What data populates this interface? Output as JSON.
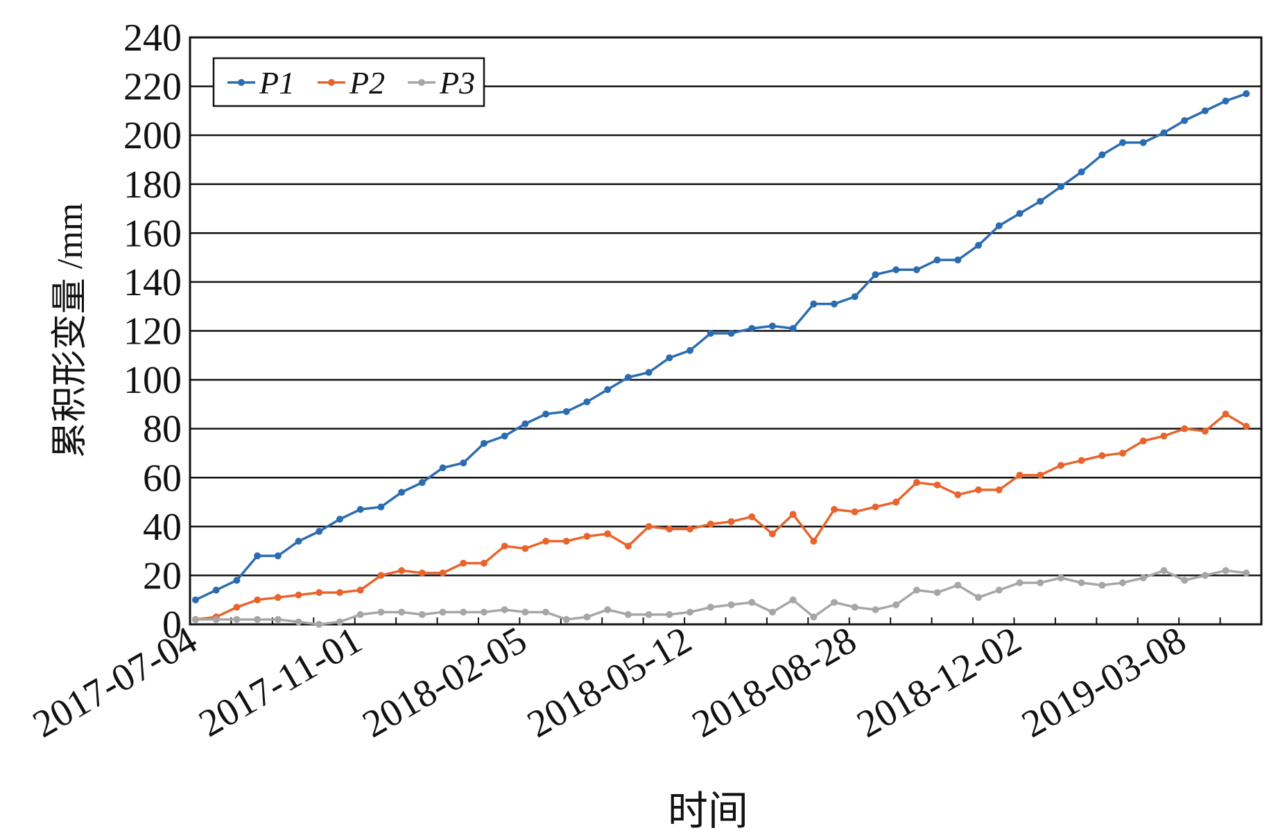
{
  "chart_data": {
    "type": "line",
    "ylabel": "累积形变量 /mm",
    "xlabel": "时间",
    "categories": [
      "2017-07-04",
      null,
      null,
      null,
      null,
      null,
      null,
      null,
      "2017-11-01",
      null,
      null,
      null,
      null,
      null,
      null,
      null,
      "2018-02-05",
      null,
      null,
      null,
      null,
      null,
      null,
      null,
      "2018-05-12",
      null,
      null,
      null,
      null,
      null,
      null,
      null,
      "2018-08-28",
      null,
      null,
      null,
      null,
      null,
      null,
      null,
      "2018-12-02",
      null,
      null,
      null,
      null,
      null,
      null,
      null,
      "2019-03-08",
      null,
      null,
      null
    ],
    "series": [
      {
        "name": "P1",
        "color": "#2b6cb0",
        "values": [
          10,
          14,
          18,
          28,
          28,
          34,
          38,
          43,
          47,
          48,
          54,
          58,
          64,
          66,
          74,
          77,
          82,
          86,
          87,
          91,
          96,
          101,
          103,
          109,
          112,
          119,
          119,
          121,
          122,
          121,
          131,
          131,
          134,
          143,
          145,
          145,
          149,
          149,
          155,
          163,
          168,
          173,
          179,
          185,
          192,
          197,
          197,
          201,
          206,
          210,
          214,
          217
        ]
      },
      {
        "name": "P2",
        "color": "#e8642c",
        "values": [
          2,
          3,
          7,
          10,
          11,
          12,
          13,
          13,
          14,
          20,
          22,
          21,
          21,
          25,
          25,
          32,
          31,
          34,
          34,
          36,
          37,
          32,
          40,
          39,
          39,
          41,
          42,
          44,
          37,
          45,
          34,
          47,
          46,
          48,
          50,
          58,
          57,
          53,
          55,
          55,
          61,
          61,
          65,
          67,
          69,
          70,
          75,
          77,
          80,
          79,
          86,
          81
        ]
      },
      {
        "name": "P3",
        "color": "#a6a6a6",
        "values": [
          2,
          2,
          2,
          2,
          2,
          1,
          0,
          1,
          4,
          5,
          5,
          4,
          5,
          5,
          5,
          6,
          5,
          5,
          2,
          3,
          6,
          4,
          4,
          4,
          5,
          7,
          8,
          9,
          5,
          10,
          3,
          9,
          7,
          6,
          8,
          14,
          13,
          16,
          11,
          14,
          17,
          17,
          19,
          17,
          16,
          17,
          19,
          22,
          18,
          20,
          22,
          21
        ]
      }
    ],
    "ylim": [
      0,
      240
    ],
    "yticks": [
      0,
      20,
      40,
      60,
      80,
      100,
      120,
      140,
      160,
      180,
      200,
      220,
      240
    ],
    "grid": true,
    "legend": "upper left"
  }
}
